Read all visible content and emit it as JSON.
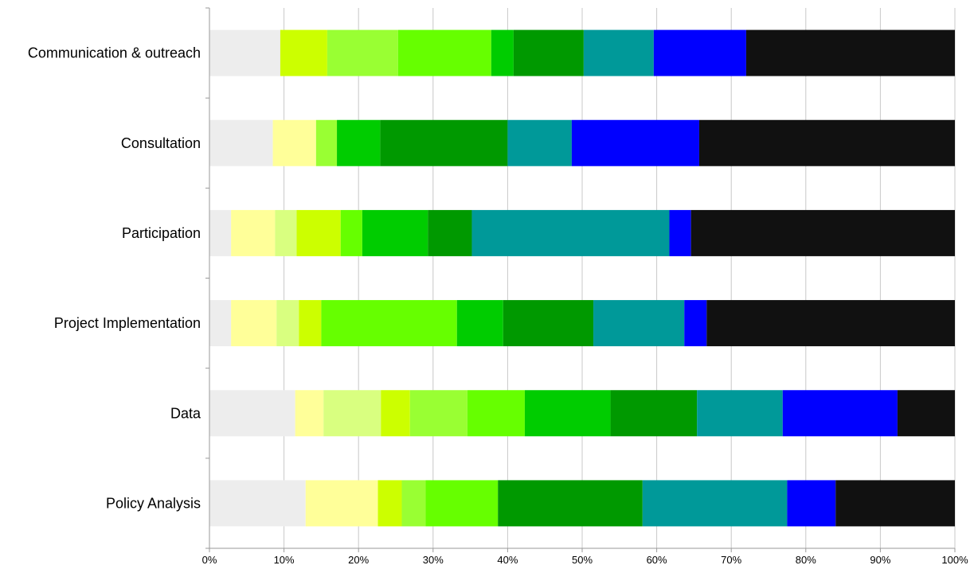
{
  "chart_data": {
    "type": "bar",
    "orientation": "horizontal",
    "stacked": "percent",
    "categories": [
      "Communication & outreach",
      "Consultation",
      "Participation",
      "Project Implementation",
      "Data",
      "Policy Analysis"
    ],
    "xlim": [
      0,
      100
    ],
    "x_ticks": [
      "0%",
      "10%",
      "20%",
      "30%",
      "40%",
      "50%",
      "60%",
      "70%",
      "80%",
      "90%",
      "100%"
    ],
    "grid": true,
    "legend": false,
    "segment_colors": [
      "#ededed",
      "#ffff99",
      "#d9ff80",
      "#ccff00",
      "#99ff33",
      "#66ff00",
      "#00cc00",
      "#009900",
      "#009999",
      "#0000ff",
      "#111111"
    ],
    "segments": [
      [
        9.5,
        0,
        0,
        6.3,
        9.5,
        12.5,
        3.0,
        9.4,
        9.4,
        12.4,
        28.0
      ],
      [
        8.5,
        5.8,
        0,
        0,
        2.8,
        0,
        5.8,
        17.1,
        8.6,
        17.1,
        34.3
      ],
      [
        2.9,
        5.9,
        2.9,
        5.9,
        0,
        2.9,
        8.8,
        5.9,
        26.5,
        2.9,
        35.4
      ],
      [
        2.9,
        6.1,
        3.0,
        3.0,
        0,
        18.2,
        6.2,
        12.1,
        12.2,
        3.0,
        33.3
      ],
      [
        11.5,
        3.8,
        7.7,
        3.9,
        7.7,
        7.7,
        11.5,
        11.6,
        11.5,
        15.4,
        7.7
      ],
      [
        12.9,
        9.7,
        0,
        3.2,
        3.2,
        9.7,
        0,
        19.4,
        19.4,
        6.5,
        16.0
      ]
    ]
  }
}
